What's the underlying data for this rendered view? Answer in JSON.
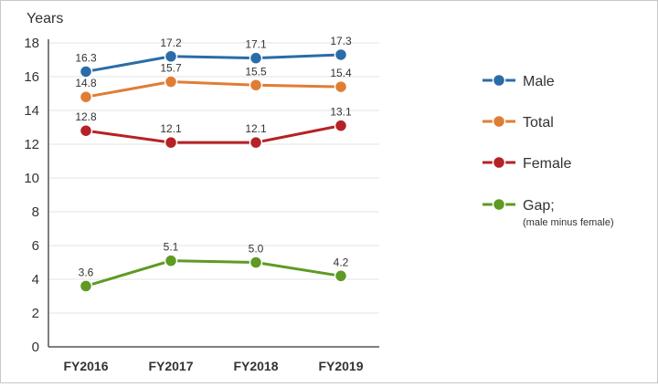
{
  "chart_data": {
    "type": "line",
    "ylabel": "Years",
    "xlabel": "",
    "categories": [
      "FY2016",
      "FY2017",
      "FY2018",
      "FY2019"
    ],
    "ylim": [
      0,
      18
    ],
    "yticks": [
      0,
      2,
      4,
      6,
      8,
      10,
      12,
      14,
      16,
      18
    ],
    "grid": "horizontal",
    "legend_position": "right",
    "series": [
      {
        "name": "Male",
        "color": "#2a6ca8",
        "values": [
          16.3,
          17.2,
          17.1,
          17.3
        ],
        "labels": [
          "16.3",
          "17.2",
          "17.1",
          "17.3"
        ]
      },
      {
        "name": "Total",
        "color": "#e07d35",
        "values": [
          14.8,
          15.7,
          15.5,
          15.4
        ],
        "labels": [
          "14.8",
          "15.7",
          "15.5",
          "15.4"
        ]
      },
      {
        "name": "Female",
        "color": "#b52226",
        "values": [
          12.8,
          12.1,
          12.1,
          13.1
        ],
        "labels": [
          "12.8",
          "12.1",
          "12.1",
          "13.1"
        ]
      },
      {
        "name": "Gap;",
        "subname": "(male minus female)",
        "color": "#5e9a24",
        "values": [
          3.6,
          5.1,
          5.0,
          4.2
        ],
        "labels": [
          "3.6",
          "5.1",
          "5.0",
          "4.2"
        ]
      }
    ]
  }
}
